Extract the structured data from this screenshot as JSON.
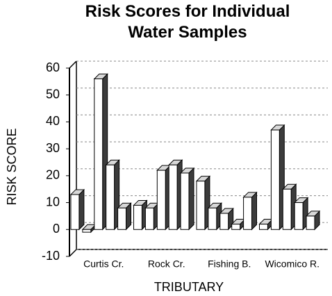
{
  "chart_data": {
    "type": "bar3d",
    "title": "Risk Scores for Individual Water Samples",
    "x_label": "TRIBUTARY",
    "y_label": "RISK SCORE",
    "categories": [
      "Curtis Cr.",
      "Rock Cr.",
      "Fishing B.",
      "Wicomico R."
    ],
    "series": [
      {
        "values": [
          13,
          9,
          18,
          2
        ]
      },
      {
        "values": [
          -1,
          8,
          8,
          37
        ]
      },
      {
        "values": [
          56,
          22,
          6,
          15
        ]
      },
      {
        "values": [
          24,
          24,
          2,
          10
        ]
      },
      {
        "values": [
          8,
          21,
          12,
          5
        ]
      }
    ],
    "color": "#ffffff",
    "side_color": "#3c3c3c",
    "top_color": "#d8d8d8",
    "ylim": [
      -10,
      60
    ],
    "yticks": [
      -10,
      0,
      10,
      20,
      30,
      40,
      50,
      60
    ],
    "grid": true
  }
}
